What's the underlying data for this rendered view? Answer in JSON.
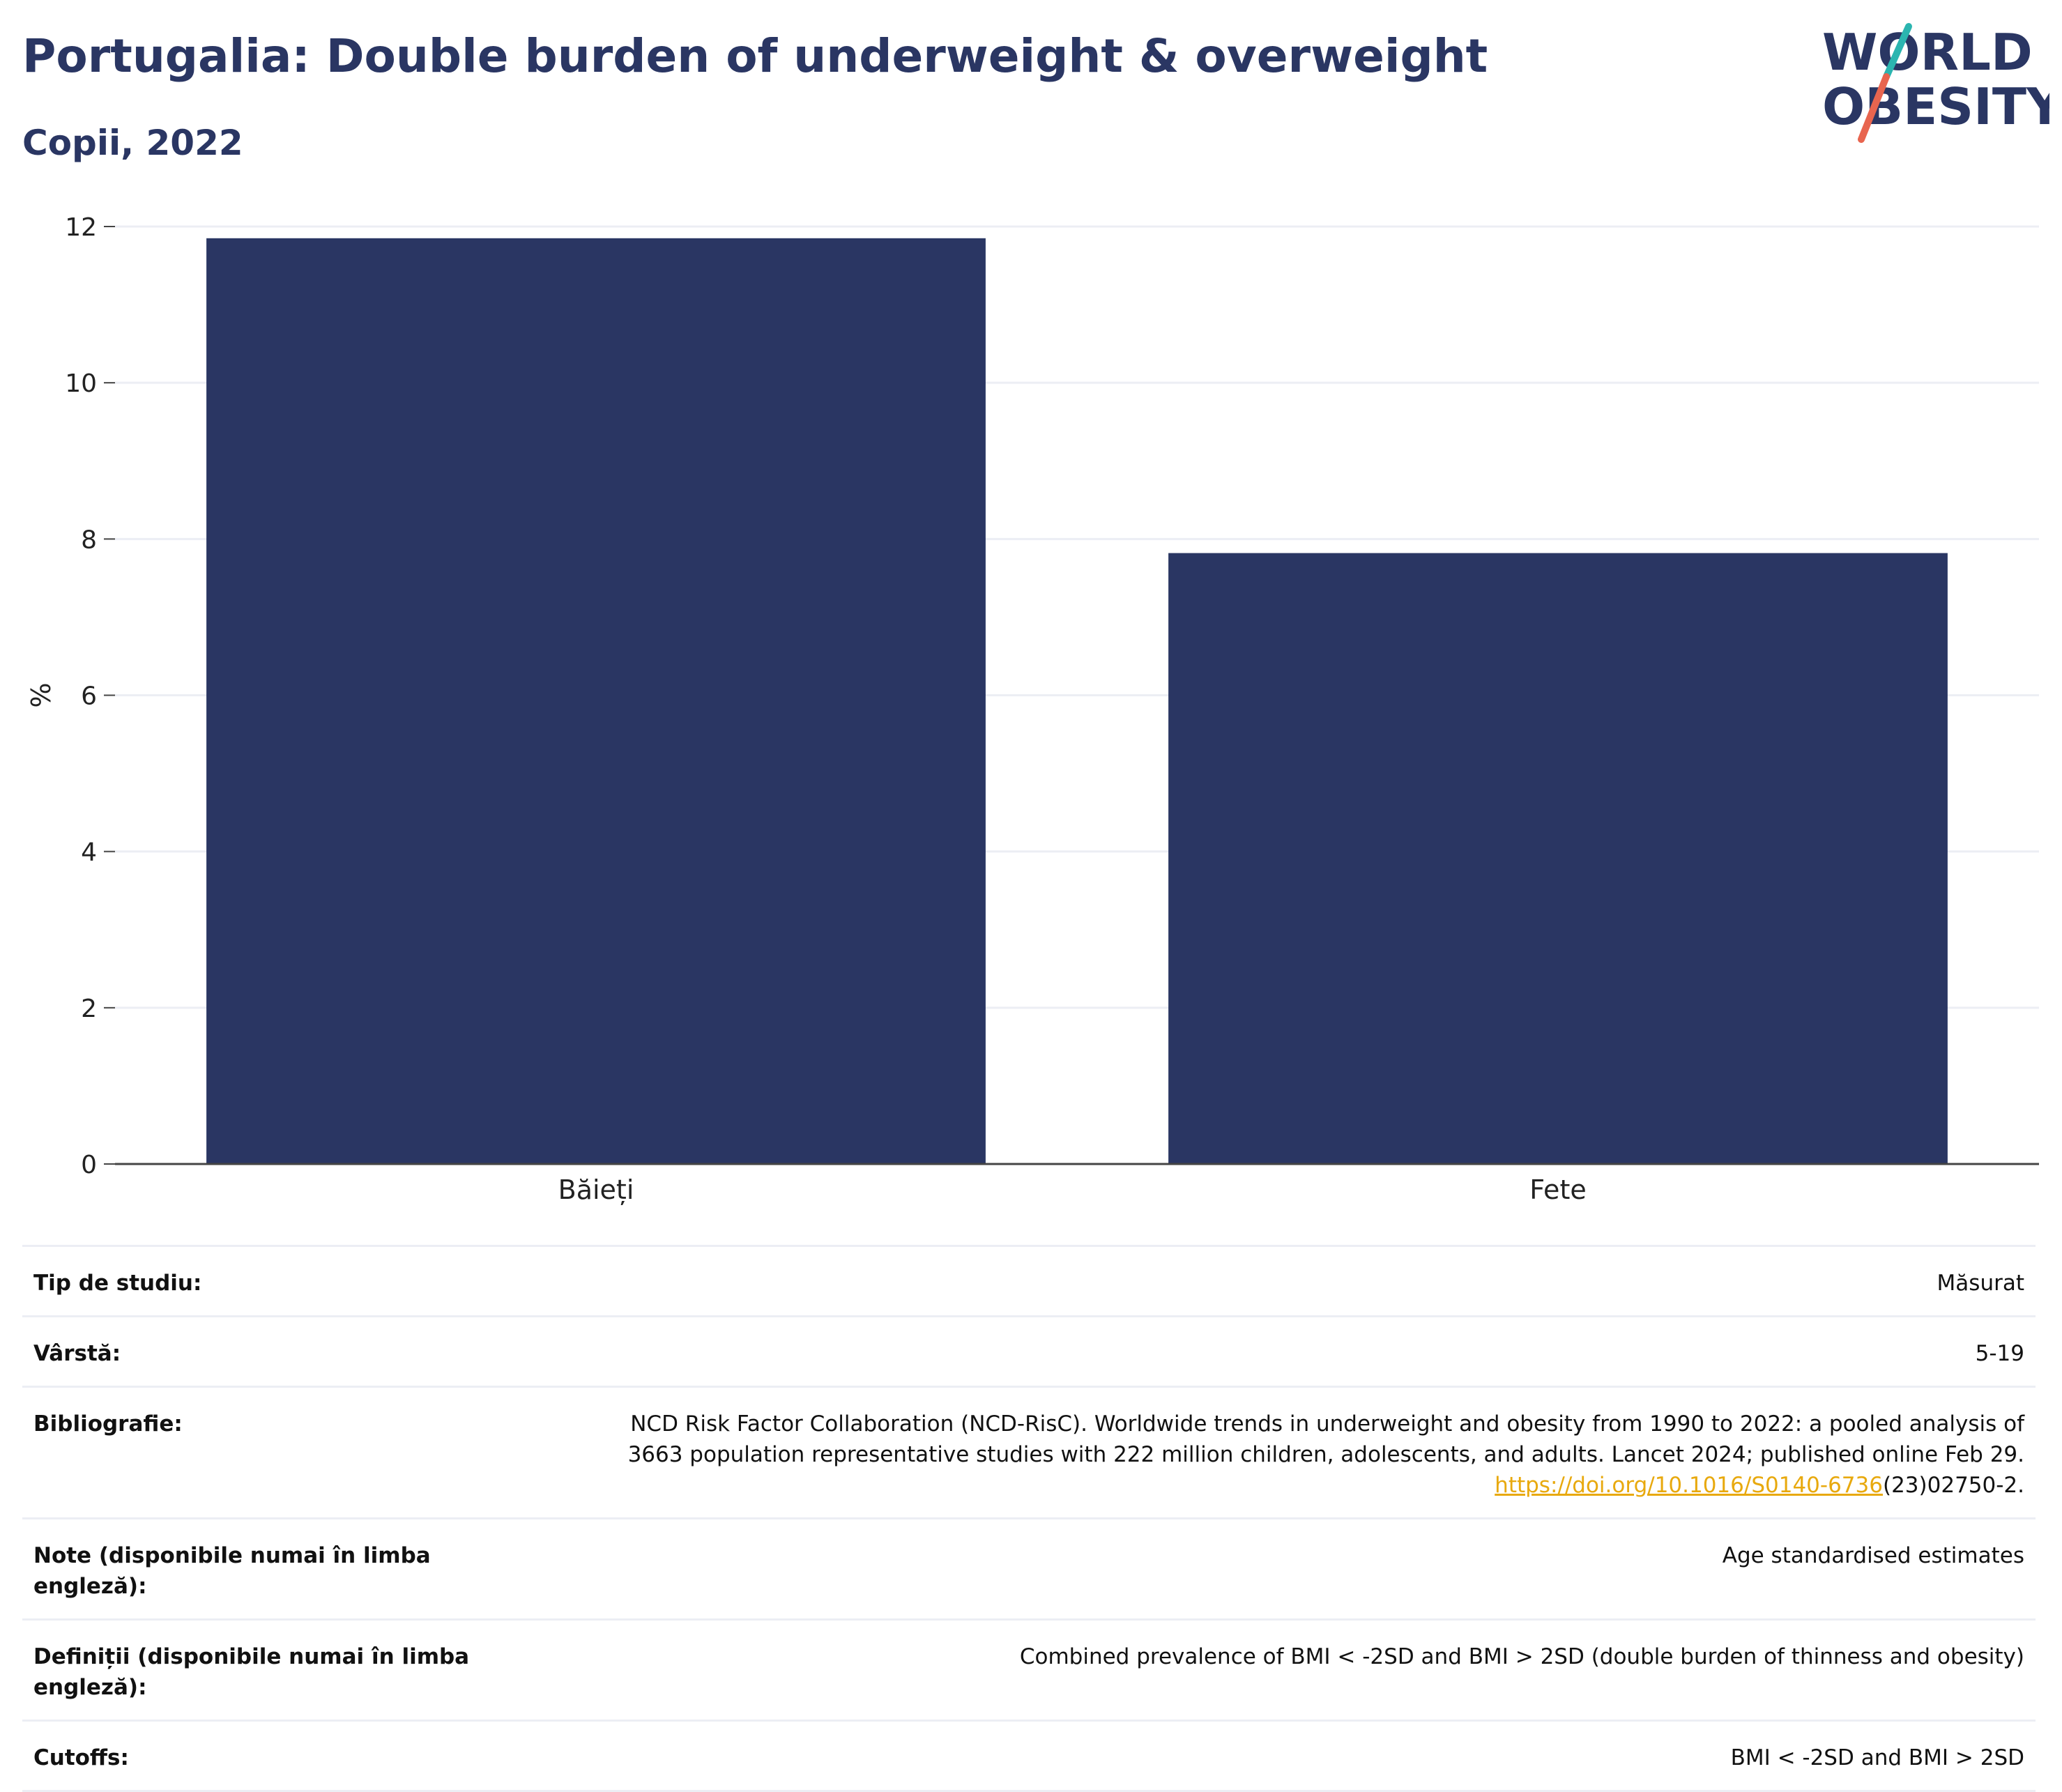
{
  "header": {
    "title": "Portugalia: Double burden of underweight & overweight",
    "subtitle": "Copii, 2022"
  },
  "logo": {
    "line1": "WORLD",
    "line2": "OBESITY",
    "colors": {
      "text": "#2a3663",
      "slash_top": "#2bb5b0",
      "slash_bottom": "#e8654f"
    }
  },
  "chart_data": {
    "type": "bar",
    "categories": [
      "Băieți",
      "Fete"
    ],
    "values": [
      11.85,
      7.82
    ],
    "title": "",
    "xlabel": "",
    "ylabel": "%",
    "ylim": [
      0,
      12
    ],
    "yticks": [
      0,
      2,
      4,
      6,
      8,
      10,
      12
    ],
    "grid": true,
    "bar_color": "#2a3663"
  },
  "meta": {
    "rows": [
      {
        "label": "Tip de studiu:",
        "value": "Măsurat"
      },
      {
        "label": "Vârstă:",
        "value": "5-19"
      },
      {
        "label": "Bibliografie:",
        "value_line1": "NCD Risk Factor Collaboration (NCD-RisC). Worldwide trends in underweight and obesity from 1990 to 2022: a pooled analysis of",
        "value_line2": "3663 population representative studies with 222 million children, adolescents, and adults. Lancet 2024; published online Feb 29.",
        "link_text": "https://doi.org/10.1016/S0140-6736",
        "link_suffix": "(23)02750-2."
      },
      {
        "label": "Note (disponibile numai în limba engleză):",
        "value": "Age standardised estimates"
      },
      {
        "label_line1": "Definiții (disponibile numai în limba",
        "label_line2": "engleză):",
        "value": "Combined prevalence of BMI < -2SD and BMI > 2SD (double burden of thinness and obesity)"
      },
      {
        "label": "Cutoffs:",
        "value": "BMI < -2SD and BMI > 2SD"
      }
    ]
  }
}
